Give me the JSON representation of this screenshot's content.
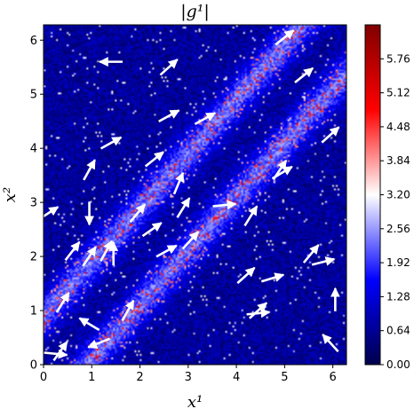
{
  "chart_data": {
    "type": "heatmap",
    "title": "|g¹|",
    "xlabel": "x¹",
    "ylabel": "x²",
    "xlim": [
      0,
      6.283
    ],
    "ylim": [
      0,
      6.283
    ],
    "x_ticks": [
      "0",
      "1",
      "2",
      "3",
      "4",
      "5",
      "6"
    ],
    "y_ticks": [
      "0",
      "1",
      "2",
      "3",
      "4",
      "5",
      "6"
    ],
    "colorbar": {
      "range": [
        0.0,
        6.4
      ],
      "colormap": "seismic",
      "ticks": [
        "0.00",
        "0.64",
        "1.28",
        "1.92",
        "2.56",
        "3.20",
        "3.84",
        "4.48",
        "5.12",
        "5.76"
      ],
      "colors": [
        "#00004c",
        "#0000ff",
        "#ffffff",
        "#ff0000",
        "#800000"
      ]
    },
    "background_value": 0.7,
    "bands": [
      {
        "offset": 0.9,
        "value": 1.6
      },
      {
        "offset": -0.9,
        "value": 1.6
      }
    ],
    "vectors": [
      {
        "x": 0.1,
        "y": 2.8,
        "u": 1,
        "v": 0.65
      },
      {
        "x": 0.35,
        "y": 0.25,
        "u": 1,
        "v": 1.4
      },
      {
        "x": 0.25,
        "y": 0.2,
        "u": 1,
        "v": -0.1
      },
      {
        "x": 0.4,
        "y": 1.15,
        "u": 1,
        "v": 1.6
      },
      {
        "x": 0.6,
        "y": 2.1,
        "u": 1,
        "v": 1.3
      },
      {
        "x": 0.95,
        "y": 0.75,
        "u": -1,
        "v": 0.6
      },
      {
        "x": 0.95,
        "y": 2.0,
        "u": 1,
        "v": 1.5
      },
      {
        "x": 0.95,
        "y": 2.8,
        "u": 0,
        "v": -1
      },
      {
        "x": 0.95,
        "y": 3.6,
        "u": 1,
        "v": 1.8
      },
      {
        "x": 1.15,
        "y": 0.4,
        "u": -1,
        "v": -0.4
      },
      {
        "x": 1.3,
        "y": 2.1,
        "u": 1,
        "v": 1.8
      },
      {
        "x": 1.45,
        "y": 2.05,
        "u": 0,
        "v": 1
      },
      {
        "x": 1.4,
        "y": 5.6,
        "u": -1,
        "v": 0
      },
      {
        "x": 1.4,
        "y": 4.1,
        "u": 1,
        "v": 0.55
      },
      {
        "x": 1.75,
        "y": 1.0,
        "u": 1,
        "v": 1.8
      },
      {
        "x": 1.95,
        "y": 2.8,
        "u": 1,
        "v": 1.2
      },
      {
        "x": 2.25,
        "y": 2.5,
        "u": 1,
        "v": 0.7
      },
      {
        "x": 2.3,
        "y": 3.8,
        "u": 1,
        "v": 0.8
      },
      {
        "x": 2.55,
        "y": 2.1,
        "u": 1,
        "v": 0.55
      },
      {
        "x": 2.6,
        "y": 5.5,
        "u": 1,
        "v": 0.9
      },
      {
        "x": 2.6,
        "y": 4.6,
        "u": 1,
        "v": 0.55
      },
      {
        "x": 2.8,
        "y": 3.35,
        "u": 1,
        "v": 2.4
      },
      {
        "x": 2.9,
        "y": 2.9,
        "u": 1,
        "v": 1.6
      },
      {
        "x": 3.05,
        "y": 2.3,
        "u": 1,
        "v": 1.1
      },
      {
        "x": 3.35,
        "y": 4.55,
        "u": 1,
        "v": 0.55
      },
      {
        "x": 3.75,
        "y": 2.95,
        "u": 1,
        "v": 0.1
      },
      {
        "x": 4.3,
        "y": 2.75,
        "u": 1,
        "v": 1.6
      },
      {
        "x": 4.2,
        "y": 1.65,
        "u": 1,
        "v": 0.9
      },
      {
        "x": 4.45,
        "y": 1.0,
        "u": 1,
        "v": 0.9
      },
      {
        "x": 4.45,
        "y": 0.95,
        "u": 1,
        "v": 0.1
      },
      {
        "x": 4.75,
        "y": 1.6,
        "u": 1,
        "v": 0.3
      },
      {
        "x": 4.9,
        "y": 3.6,
        "u": 1,
        "v": 1.5
      },
      {
        "x": 4.95,
        "y": 3.55,
        "u": 1,
        "v": 0.6
      },
      {
        "x": 5.0,
        "y": 6.05,
        "u": 1,
        "v": 0.8
      },
      {
        "x": 5.4,
        "y": 5.35,
        "u": 1,
        "v": 0.8
      },
      {
        "x": 5.55,
        "y": 2.05,
        "u": 1,
        "v": 1.2
      },
      {
        "x": 5.8,
        "y": 1.9,
        "u": 1,
        "v": 0.25
      },
      {
        "x": 5.95,
        "y": 4.25,
        "u": 1,
        "v": 0.9
      },
      {
        "x": 6.05,
        "y": 1.2,
        "u": 0,
        "v": 1
      },
      {
        "x": 5.95,
        "y": 0.4,
        "u": -1,
        "v": 1.1
      }
    ]
  }
}
